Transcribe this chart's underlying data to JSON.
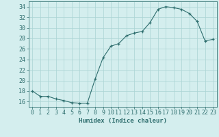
{
  "x": [
    0,
    1,
    2,
    3,
    4,
    5,
    6,
    7,
    8,
    9,
    10,
    11,
    12,
    13,
    14,
    15,
    16,
    17,
    18,
    19,
    20,
    21,
    22,
    23
  ],
  "y": [
    18,
    17,
    17,
    16.5,
    16.2,
    15.8,
    15.7,
    15.7,
    20.3,
    24.3,
    26.5,
    27,
    28.5,
    29,
    29.3,
    31,
    33.5,
    34,
    33.8,
    33.5,
    32.7,
    31.2,
    27.5,
    27.8
  ],
  "line_color": "#2e6e6e",
  "marker": "+",
  "bg_color": "#d4eeee",
  "grid_color": "#aad4d4",
  "xlabel": "Humidex (Indice chaleur)",
  "ylim": [
    15,
    35
  ],
  "xlim": [
    -0.5,
    23.5
  ],
  "yticks": [
    16,
    18,
    20,
    22,
    24,
    26,
    28,
    30,
    32,
    34
  ],
  "xticks": [
    0,
    1,
    2,
    3,
    4,
    5,
    6,
    7,
    8,
    9,
    10,
    11,
    12,
    13,
    14,
    15,
    16,
    17,
    18,
    19,
    20,
    21,
    22,
    23
  ],
  "font_color": "#2e6e6e",
  "xlabel_fontsize": 6.5,
  "tick_fontsize": 6.0,
  "linewidth": 0.8,
  "markersize": 3.5
}
